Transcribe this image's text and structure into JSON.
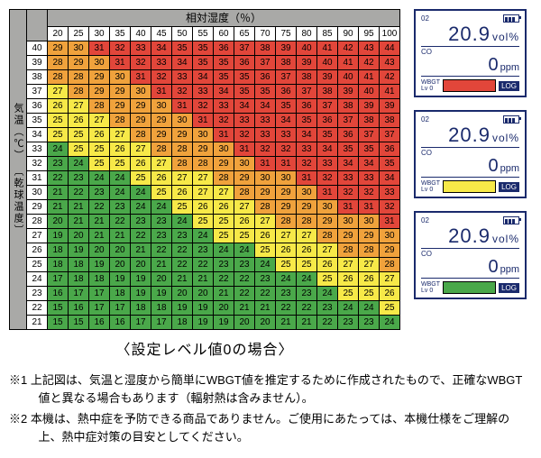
{
  "chart": {
    "type": "heatmap",
    "x_title": "相対湿度（％）",
    "y_title": "気温（℃） 〔乾球温度〕",
    "humidity": [
      20,
      25,
      30,
      35,
      40,
      45,
      50,
      55,
      60,
      65,
      70,
      75,
      80,
      85,
      90,
      95,
      100
    ],
    "temperature": [
      40,
      39,
      38,
      37,
      36,
      35,
      34,
      33,
      32,
      31,
      30,
      29,
      28,
      27,
      26,
      25,
      24,
      23,
      22,
      21
    ],
    "values": [
      [
        29,
        30,
        31,
        32,
        33,
        34,
        35,
        35,
        36,
        37,
        38,
        39,
        40,
        41,
        42,
        43,
        44
      ],
      [
        28,
        29,
        30,
        31,
        32,
        33,
        34,
        35,
        35,
        36,
        37,
        38,
        39,
        40,
        41,
        42,
        43
      ],
      [
        28,
        28,
        29,
        30,
        31,
        32,
        33,
        34,
        35,
        35,
        36,
        37,
        38,
        39,
        40,
        41,
        42
      ],
      [
        27,
        28,
        29,
        29,
        30,
        31,
        32,
        33,
        34,
        35,
        35,
        36,
        37,
        38,
        39,
        40,
        41
      ],
      [
        26,
        27,
        28,
        29,
        29,
        30,
        31,
        32,
        33,
        34,
        34,
        35,
        36,
        37,
        38,
        39,
        39
      ],
      [
        25,
        26,
        27,
        28,
        29,
        29,
        30,
        31,
        32,
        33,
        33,
        34,
        35,
        36,
        37,
        38,
        38
      ],
      [
        25,
        25,
        26,
        27,
        28,
        29,
        29,
        30,
        31,
        32,
        33,
        33,
        34,
        35,
        36,
        37,
        37
      ],
      [
        24,
        25,
        25,
        26,
        27,
        28,
        28,
        29,
        30,
        31,
        32,
        32,
        33,
        34,
        35,
        35,
        36
      ],
      [
        23,
        24,
        25,
        25,
        26,
        27,
        28,
        28,
        29,
        30,
        31,
        31,
        32,
        33,
        34,
        34,
        35
      ],
      [
        22,
        23,
        24,
        24,
        25,
        26,
        27,
        27,
        28,
        29,
        30,
        30,
        31,
        32,
        33,
        33,
        34
      ],
      [
        21,
        22,
        23,
        24,
        24,
        25,
        26,
        27,
        27,
        28,
        29,
        29,
        30,
        31,
        32,
        32,
        33
      ],
      [
        21,
        21,
        22,
        23,
        24,
        24,
        25,
        26,
        26,
        27,
        28,
        29,
        29,
        30,
        31,
        31,
        32
      ],
      [
        20,
        21,
        21,
        22,
        23,
        23,
        24,
        25,
        25,
        26,
        27,
        28,
        28,
        29,
        30,
        30,
        31
      ],
      [
        19,
        20,
        21,
        21,
        22,
        23,
        23,
        24,
        25,
        25,
        26,
        27,
        27,
        28,
        29,
        29,
        30
      ],
      [
        18,
        19,
        20,
        20,
        21,
        22,
        22,
        23,
        24,
        24,
        25,
        26,
        26,
        27,
        28,
        28,
        29
      ],
      [
        18,
        18,
        19,
        20,
        20,
        21,
        22,
        22,
        23,
        23,
        24,
        25,
        25,
        26,
        27,
        27,
        28
      ],
      [
        17,
        18,
        18,
        19,
        19,
        20,
        21,
        21,
        22,
        22,
        23,
        24,
        24,
        25,
        26,
        26,
        27
      ],
      [
        16,
        17,
        17,
        18,
        19,
        19,
        20,
        20,
        21,
        22,
        22,
        23,
        23,
        24,
        25,
        25,
        26
      ],
      [
        15,
        16,
        17,
        17,
        18,
        18,
        19,
        19,
        20,
        21,
        21,
        22,
        22,
        23,
        24,
        24,
        25
      ],
      [
        15,
        15,
        16,
        16,
        17,
        17,
        18,
        19,
        19,
        20,
        20,
        21,
        21,
        22,
        23,
        23,
        24
      ]
    ],
    "thresholds": {
      "green_max": 24,
      "yellow_max": 27,
      "orange_max": 30
    },
    "colors": {
      "green": "#4aa84a",
      "yellow": "#f7e948",
      "orange": "#f0a23c",
      "red": "#e2463a",
      "header_gray": "#a9a9a7",
      "border": "#000000",
      "bg": "#ffffff"
    },
    "cell_font_size": 10
  },
  "caption": "〈設定レベル値0の場合〉",
  "panels": [
    {
      "o2_ch": "02",
      "o2": "20.9",
      "o2_unit": "vol%",
      "co_label": "CO",
      "co": "0",
      "co_unit": "ppm",
      "wbgt_label": "WBGT",
      "lv_label": "Lv 0",
      "bar_color": "#e2463a",
      "log": "LOG"
    },
    {
      "o2_ch": "02",
      "o2": "20.9",
      "o2_unit": "vol%",
      "co_label": "CO",
      "co": "0",
      "co_unit": "ppm",
      "wbgt_label": "WBGT",
      "lv_label": "Lv 0",
      "bar_color": "#f7e948",
      "log": "LOG"
    },
    {
      "o2_ch": "02",
      "o2": "20.9",
      "o2_unit": "vol%",
      "co_label": "CO",
      "co": "0",
      "co_unit": "ppm",
      "wbgt_label": "WBGT",
      "lv_label": "Lv 0",
      "bar_color": "#4aa84a",
      "log": "LOG"
    }
  ],
  "notes": {
    "n1": "※1 上記図は、気温と湿度から簡単にWBGT値を推定するために作成されたもので、正確なWBGT値と異なる場合もあります（輻射熱は含みません）。",
    "n2": "※2 本機は、熱中症を予防できる商品でありません。ご使用にあたっては、本機仕様をご理解の上、熱中症対策の目安としてください。"
  }
}
